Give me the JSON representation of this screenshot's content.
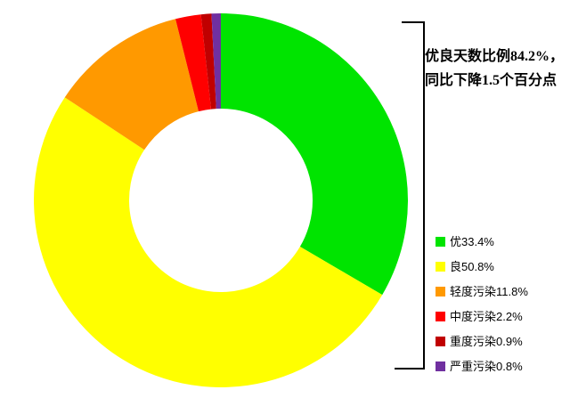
{
  "page": {
    "background": "#FFFFFF"
  },
  "chart_data": {
    "type": "pie",
    "subtype": "donut",
    "categories": [
      "优",
      "良",
      "轻度污染",
      "中度污染",
      "重度污染",
      "严重污染"
    ],
    "values": [
      33.4,
      50.8,
      11.8,
      2.2,
      0.9,
      0.8
    ],
    "unit": "%",
    "colors": [
      "#00E400",
      "#FFFF00",
      "#FF9900",
      "#FF0000",
      "#C00000",
      "#7030A0"
    ],
    "legend_labels": [
      "优33.4%",
      "良50.8%",
      "轻度污染11.8%",
      "中度污染2.2%",
      "重度污染0.9%",
      "严重污染0.8%"
    ],
    "legend_position": "right-bottom",
    "donut_hole_ratio": 0.49,
    "start_angle_deg": 0,
    "direction": "clockwise",
    "grid": false,
    "annotation": {
      "line1": "优良天数比例84.2%，",
      "line2": "同比下降1.5个百分点"
    },
    "bracket_color": "#000000"
  }
}
